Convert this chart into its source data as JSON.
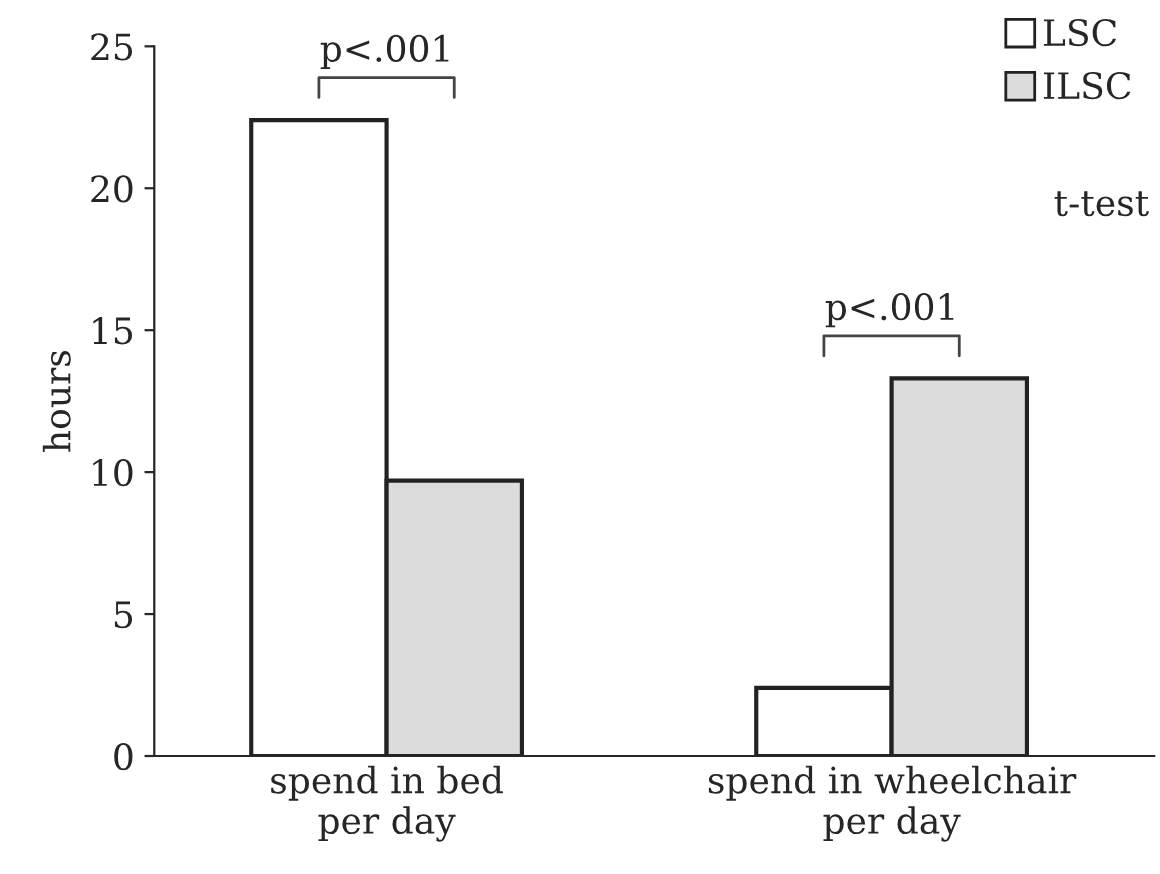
{
  "chart_data": {
    "type": "bar",
    "ylabel": "hours",
    "categories": [
      "spend in bed\nper day",
      "spend in wheelchair\nper day"
    ],
    "series": [
      {
        "name": "LSC",
        "color": "#ffffff",
        "values": [
          22.4,
          2.4
        ]
      },
      {
        "name": "ILSC",
        "color": "#dcdcdc",
        "values": [
          9.7,
          13.3
        ]
      }
    ],
    "ylim": [
      0,
      25
    ],
    "yticks": [
      0,
      5,
      10,
      15,
      20,
      25
    ],
    "grid": false,
    "legend": "top right",
    "annotations": [
      "p<.001",
      "p<.001",
      "t-test"
    ]
  }
}
